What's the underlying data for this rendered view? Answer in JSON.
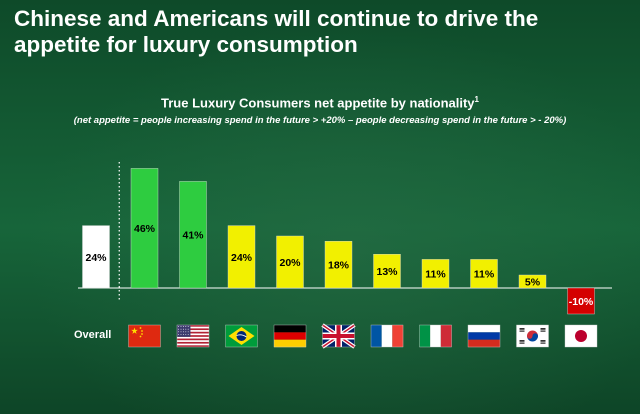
{
  "slide": {
    "headline": "Chinese and Americans will continue to drive the appetite for luxury consumption"
  },
  "colors": {
    "overall": "#ffffff",
    "top": "#2ecc40",
    "positive": "#f2f000",
    "negative": "#d40000"
  },
  "chart_data": {
    "type": "bar",
    "title": "True Luxury Consumers net appetite by nationality",
    "title_footnote": "1",
    "subtitle": "(net appetite = people increasing spend in the future > +20% – people decreasing spend in the future > - 20%)",
    "overall_label": "Overall",
    "categories": [
      "Overall",
      "China",
      "United States",
      "Brazil",
      "Germany",
      "United Kingdom",
      "France",
      "Italy",
      "Russia",
      "South Korea",
      "Japan"
    ],
    "values": [
      24,
      46,
      41,
      24,
      20,
      18,
      13,
      11,
      11,
      5,
      -10
    ],
    "value_labels": [
      "24%",
      "46%",
      "41%",
      "24%",
      "20%",
      "18%",
      "13%",
      "11%",
      "11%",
      "5%",
      "-10%"
    ],
    "bar_colors": [
      "overall",
      "top",
      "top",
      "positive",
      "positive",
      "positive",
      "positive",
      "positive",
      "positive",
      "positive",
      "negative"
    ],
    "flags": [
      "",
      "china-flag-icon",
      "usa-flag-icon",
      "brazil-flag-icon",
      "germany-flag-icon",
      "uk-flag-icon",
      "france-flag-icon",
      "italy-flag-icon",
      "russia-flag-icon",
      "south-korea-flag-icon",
      "japan-flag-icon"
    ],
    "unit": "%",
    "ylim": [
      -12,
      50
    ]
  }
}
